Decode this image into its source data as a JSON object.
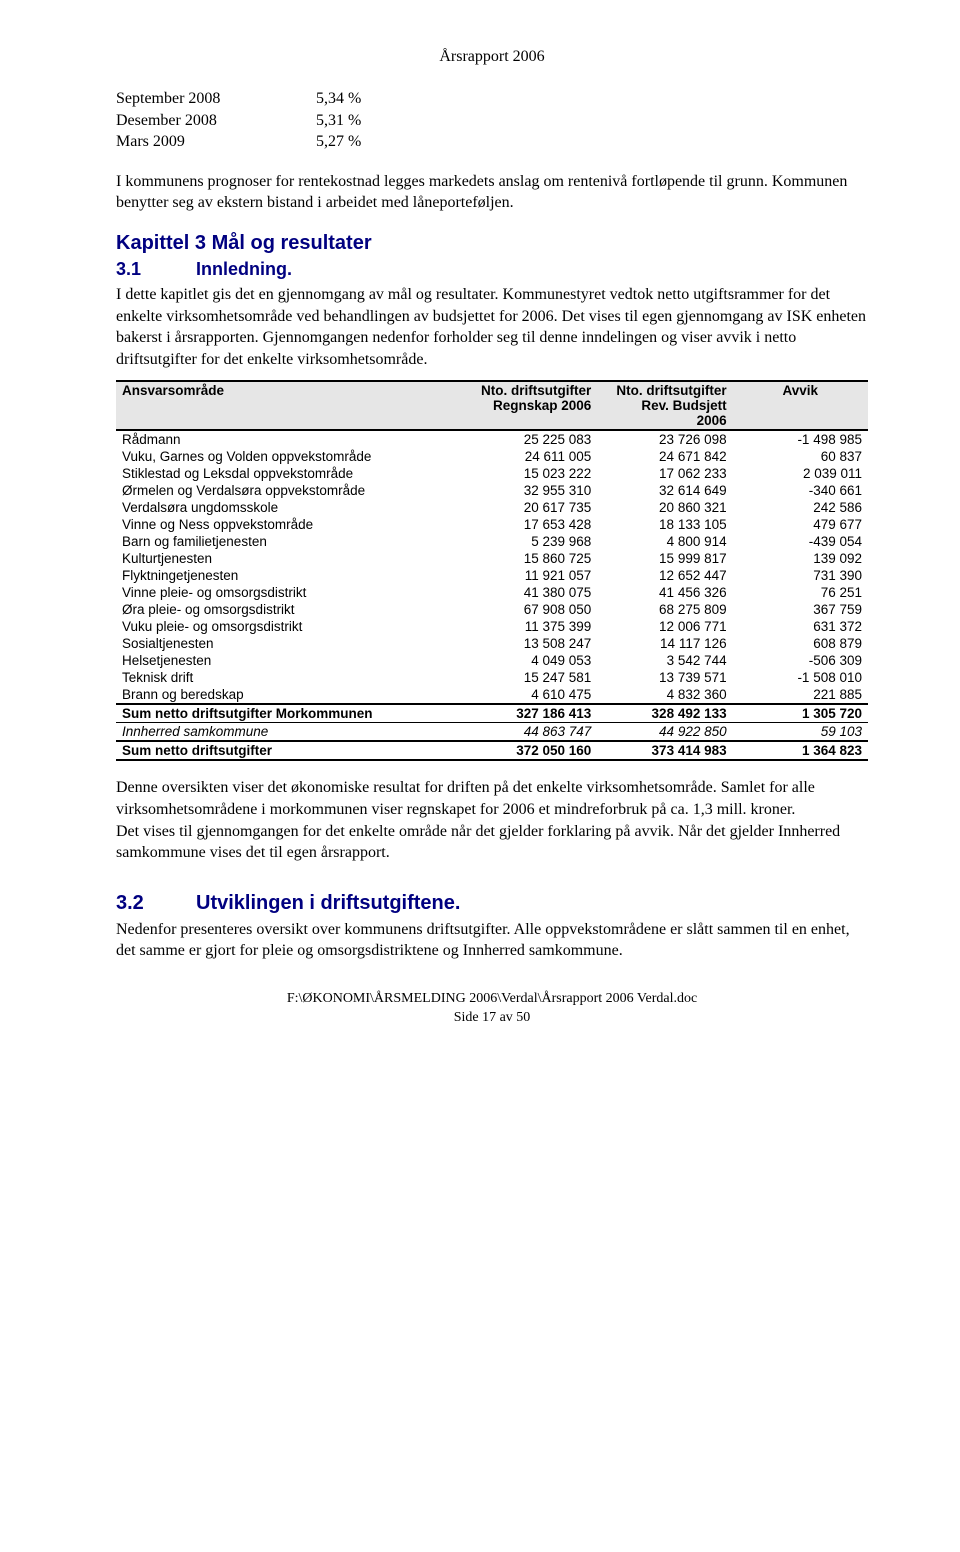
{
  "header": {
    "title": "Årsrapport 2006"
  },
  "rates": {
    "rows": [
      {
        "label": "September 2008",
        "value": "5,34 %"
      },
      {
        "label": "Desember 2008",
        "value": "5,31 %"
      },
      {
        "label": "Mars 2009",
        "value": "5,27 %"
      }
    ]
  },
  "p1": "I kommunens prognoser for rentekostnad legges markedets anslag om rentenivå fortløpende til grunn. Kommunen benytter seg av ekstern bistand i arbeidet med låneporteføljen.",
  "kap3": {
    "title": "Kapittel 3 Mål og resultater"
  },
  "sec31": {
    "num": "3.1",
    "title": "Innledning."
  },
  "p2": "I dette kapitlet gis det en gjennomgang av mål og resultater. Kommunestyret vedtok netto utgiftsrammer for det enkelte virksomhetsområde ved behandlingen av budsjettet for 2006. Det vises til egen gjennomgang av ISK enheten bakerst i årsrapporten. Gjennomgangen nedenfor forholder seg til denne inndelingen og viser avvik i netto driftsutgifter for det enkelte virksomhetsområde.",
  "table": {
    "header": {
      "c1": "Ansvarsområde",
      "c2a": "Nto. driftsutgifter",
      "c2b": "Regnskap 2006",
      "c3a": "Nto. driftsutgifter",
      "c3b": "Rev. Budsjett",
      "c3c": "2006",
      "c4": "Avvik"
    },
    "rows": [
      {
        "name": "Rådmann",
        "v1": "25 225 083",
        "v2": "23 726 098",
        "v3": "-1 498 985"
      },
      {
        "name": "Vuku, Garnes og Volden oppvekstområde",
        "v1": "24 611 005",
        "v2": "24 671 842",
        "v3": "60 837"
      },
      {
        "name": "Stiklestad og Leksdal oppvekstområde",
        "v1": "15 023 222",
        "v2": "17 062 233",
        "v3": "2 039 011"
      },
      {
        "name": "Ørmelen og Verdalsøra oppvekstområde",
        "v1": "32 955 310",
        "v2": "32 614 649",
        "v3": "-340 661"
      },
      {
        "name": "Verdalsøra ungdomsskole",
        "v1": "20 617 735",
        "v2": "20 860 321",
        "v3": "242 586"
      },
      {
        "name": "Vinne og Ness oppvekstområde",
        "v1": "17 653 428",
        "v2": "18 133 105",
        "v3": "479 677"
      },
      {
        "name": "Barn og familietjenesten",
        "v1": "5 239 968",
        "v2": "4 800 914",
        "v3": "-439 054"
      },
      {
        "name": "Kulturtjenesten",
        "v1": "15 860 725",
        "v2": "15 999 817",
        "v3": "139 092"
      },
      {
        "name": "Flyktningetjenesten",
        "v1": "11 921 057",
        "v2": "12 652 447",
        "v3": "731 390"
      },
      {
        "name": "Vinne pleie- og omsorgsdistrikt",
        "v1": "41 380 075",
        "v2": "41 456 326",
        "v3": "76 251"
      },
      {
        "name": "Øra pleie- og omsorgsdistrikt",
        "v1": "67 908 050",
        "v2": "68 275 809",
        "v3": "367 759"
      },
      {
        "name": "Vuku pleie- og omsorgsdistrikt",
        "v1": "11 375 399",
        "v2": "12 006 771",
        "v3": "631 372"
      },
      {
        "name": "Sosialtjenesten",
        "v1": "13 508 247",
        "v2": "14 117 126",
        "v3": "608 879"
      },
      {
        "name": "Helsetjenesten",
        "v1": "4 049 053",
        "v2": "3 542 744",
        "v3": "-506 309"
      },
      {
        "name": "Teknisk drift",
        "v1": "15 247 581",
        "v2": "13 739 571",
        "v3": "-1 508 010"
      },
      {
        "name": "Brann og beredskap",
        "v1": "4 610 475",
        "v2": "4 832 360",
        "v3": "221 885"
      }
    ],
    "sum1": {
      "name": "Sum netto driftsutgifter Morkommunen",
      "v1": "327 186 413",
      "v2": "328 492 133",
      "v3": "1 305 720"
    },
    "samkommune": {
      "name": "Innherred samkommune",
      "v1": "44 863 747",
      "v2": "44 922 850",
      "v3": "59 103"
    },
    "sum2": {
      "name": "Sum netto driftsutgifter",
      "v1": "372 050 160",
      "v2": "373 414 983",
      "v3": "1 364 823"
    }
  },
  "p3": "Denne oversikten viser det økonomiske resultat for driften på det enkelte virksomhetsområde. Samlet for alle virksomhetsområdene i morkommunen viser regnskapet for 2006 et mindreforbruk på ca. 1,3 mill. kroner.",
  "p4": "Det vises til gjennomgangen for det enkelte område når det gjelder forklaring på avvik. Når det gjelder Innherred samkommune vises det til egen årsrapport.",
  "sec32": {
    "num": "3.2",
    "title": "Utviklingen i driftsutgiftene."
  },
  "p5": "Nedenfor presenteres oversikt over kommunens driftsutgifter. Alle oppvekstområdene er slått sammen til en enhet, det samme er gjort for pleie og omsorgsdistriktene og Innherred samkommune.",
  "footer": {
    "path": "F:\\ØKONOMI\\ÅRSMELDING 2006\\Verdal\\Årsrapport 2006 Verdal.doc",
    "page": "Side 17 av 50"
  }
}
